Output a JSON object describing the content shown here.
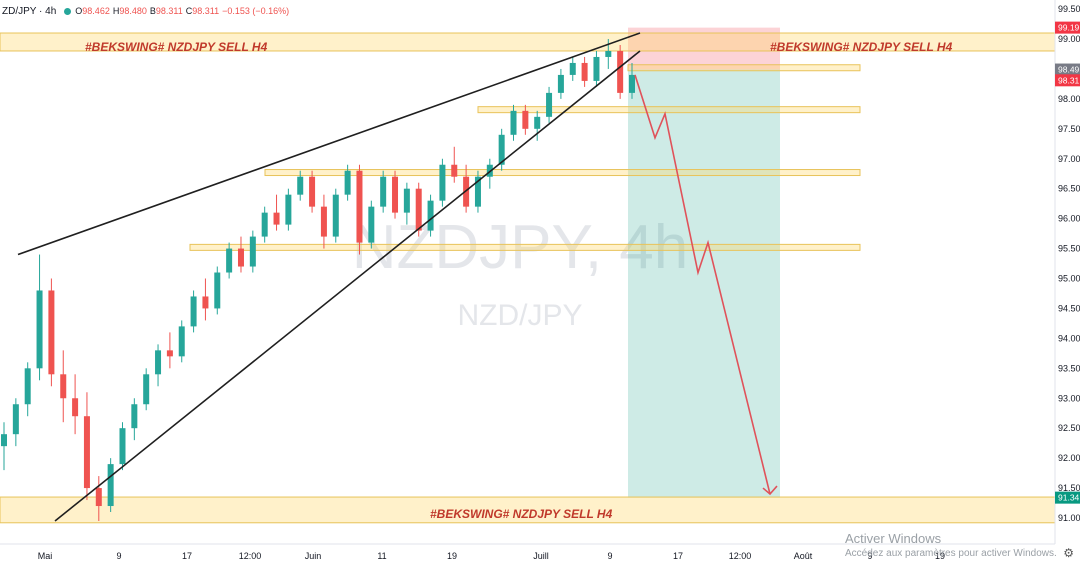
{
  "header": {
    "symbol_interval": "ZD/JPY · 4h",
    "open_key": "O",
    "open_val": "98.462",
    "high_key": "H",
    "high_val": "98.480",
    "low_key": "B",
    "low_val": "98.311",
    "close_key": "C",
    "close_val": "98.311",
    "change": "−0.153 (−0.16%)"
  },
  "watermark": {
    "line1": "NZDJPY, 4h",
    "line2": "NZD/JPY"
  },
  "os_watermark": {
    "line1": "Activer Windows",
    "line2": "Accédez aux paramètres pour activer Windows."
  },
  "chart_data": {
    "type": "candlestick",
    "symbol": "NZDJPY",
    "interval": "4h",
    "y_axis": {
      "ticks": [
        "99.50",
        "99.00",
        "98.50",
        "98.00",
        "97.50",
        "97.00",
        "96.50",
        "96.00",
        "95.50",
        "95.00",
        "94.50",
        "94.00",
        "93.50",
        "93.00",
        "92.50",
        "92.00",
        "91.50",
        "91.00"
      ],
      "ylim": [
        90.8,
        99.7
      ]
    },
    "x_axis": {
      "ticks": [
        "Mai",
        "9",
        "17",
        "12:00",
        "Juin",
        "11",
        "19",
        "Juill",
        "9",
        "17",
        "12:00",
        "Août",
        "9",
        "19"
      ]
    },
    "price_labels": [
      {
        "label": "99.19",
        "value": 99.19,
        "color": "#f23645"
      },
      {
        "label": "98.49",
        "value": 98.49,
        "color": "#787b86"
      },
      {
        "label": "98.31",
        "value": 98.31,
        "color": "#f23645"
      },
      {
        "label": "91.34",
        "value": 91.34,
        "color": "#089981"
      }
    ],
    "annotations": [
      {
        "text": "#BEKSWING# NZDJPY SELL H4",
        "position": "top-left"
      },
      {
        "text": "#BEKSWING# NZDJPY SELL H4",
        "position": "top-right"
      },
      {
        "text": "#BEKSWING# NZDJPY SELL H4",
        "position": "bottom-center"
      }
    ],
    "zones": [
      {
        "type": "resistance",
        "from": 98.8,
        "to": 99.1
      },
      {
        "type": "level",
        "from": 98.47,
        "to": 98.57
      },
      {
        "type": "level",
        "from": 97.77,
        "to": 97.87
      },
      {
        "type": "level",
        "from": 96.72,
        "to": 96.82
      },
      {
        "type": "level",
        "from": 95.47,
        "to": 95.57
      },
      {
        "type": "support",
        "from": 90.92,
        "to": 91.35
      }
    ],
    "position": {
      "type": "short",
      "entry": 98.49,
      "stop": 99.19,
      "target": 91.34
    },
    "projection_path": [
      98.4,
      97.35,
      97.75,
      95.1,
      95.6,
      91.4
    ],
    "trendlines": [
      {
        "name": "upper-wedge",
        "from": 95.4,
        "to": 99.05
      },
      {
        "name": "lower-wedge",
        "from": 90.95,
        "to": 98.85
      }
    ],
    "candles": [
      {
        "o": 92.2,
        "h": 92.6,
        "l": 91.8,
        "c": 92.4
      },
      {
        "o": 92.4,
        "h": 93.0,
        "l": 92.2,
        "c": 92.9
      },
      {
        "o": 92.9,
        "h": 93.6,
        "l": 92.7,
        "c": 93.5
      },
      {
        "o": 93.5,
        "h": 95.4,
        "l": 93.3,
        "c": 94.8
      },
      {
        "o": 94.8,
        "h": 95.0,
        "l": 93.2,
        "c": 93.4
      },
      {
        "o": 93.4,
        "h": 93.8,
        "l": 92.6,
        "c": 93.0
      },
      {
        "o": 93.0,
        "h": 93.4,
        "l": 92.4,
        "c": 92.7
      },
      {
        "o": 92.7,
        "h": 93.1,
        "l": 91.3,
        "c": 91.5
      },
      {
        "o": 91.5,
        "h": 91.7,
        "l": 90.95,
        "c": 91.2
      },
      {
        "o": 91.2,
        "h": 92.0,
        "l": 91.1,
        "c": 91.9
      },
      {
        "o": 91.9,
        "h": 92.6,
        "l": 91.8,
        "c": 92.5
      },
      {
        "o": 92.5,
        "h": 93.0,
        "l": 92.3,
        "c": 92.9
      },
      {
        "o": 92.9,
        "h": 93.5,
        "l": 92.8,
        "c": 93.4
      },
      {
        "o": 93.4,
        "h": 93.9,
        "l": 93.2,
        "c": 93.8
      },
      {
        "o": 93.8,
        "h": 94.1,
        "l": 93.5,
        "c": 93.7
      },
      {
        "o": 93.7,
        "h": 94.3,
        "l": 93.6,
        "c": 94.2
      },
      {
        "o": 94.2,
        "h": 94.8,
        "l": 94.1,
        "c": 94.7
      },
      {
        "o": 94.7,
        "h": 95.0,
        "l": 94.3,
        "c": 94.5
      },
      {
        "o": 94.5,
        "h": 95.2,
        "l": 94.4,
        "c": 95.1
      },
      {
        "o": 95.1,
        "h": 95.6,
        "l": 95.0,
        "c": 95.5
      },
      {
        "o": 95.5,
        "h": 95.7,
        "l": 95.1,
        "c": 95.2
      },
      {
        "o": 95.2,
        "h": 95.8,
        "l": 95.1,
        "c": 95.7
      },
      {
        "o": 95.7,
        "h": 96.2,
        "l": 95.6,
        "c": 96.1
      },
      {
        "o": 96.1,
        "h": 96.4,
        "l": 95.8,
        "c": 95.9
      },
      {
        "o": 95.9,
        "h": 96.5,
        "l": 95.8,
        "c": 96.4
      },
      {
        "o": 96.4,
        "h": 96.8,
        "l": 96.3,
        "c": 96.7
      },
      {
        "o": 96.7,
        "h": 96.8,
        "l": 96.1,
        "c": 96.2
      },
      {
        "o": 96.2,
        "h": 96.4,
        "l": 95.5,
        "c": 95.7
      },
      {
        "o": 95.7,
        "h": 96.5,
        "l": 95.6,
        "c": 96.4
      },
      {
        "o": 96.4,
        "h": 96.9,
        "l": 96.3,
        "c": 96.8
      },
      {
        "o": 96.8,
        "h": 96.9,
        "l": 95.4,
        "c": 95.6
      },
      {
        "o": 95.6,
        "h": 96.3,
        "l": 95.5,
        "c": 96.2
      },
      {
        "o": 96.2,
        "h": 96.8,
        "l": 96.1,
        "c": 96.7
      },
      {
        "o": 96.7,
        "h": 96.8,
        "l": 96.0,
        "c": 96.1
      },
      {
        "o": 96.1,
        "h": 96.6,
        "l": 95.9,
        "c": 96.5
      },
      {
        "o": 96.5,
        "h": 96.6,
        "l": 95.7,
        "c": 95.8
      },
      {
        "o": 95.8,
        "h": 96.4,
        "l": 95.7,
        "c": 96.3
      },
      {
        "o": 96.3,
        "h": 97.0,
        "l": 96.2,
        "c": 96.9
      },
      {
        "o": 96.9,
        "h": 97.2,
        "l": 96.6,
        "c": 96.7
      },
      {
        "o": 96.7,
        "h": 96.9,
        "l": 96.1,
        "c": 96.2
      },
      {
        "o": 96.2,
        "h": 96.8,
        "l": 96.1,
        "c": 96.7
      },
      {
        "o": 96.7,
        "h": 97.0,
        "l": 96.5,
        "c": 96.9
      },
      {
        "o": 96.9,
        "h": 97.5,
        "l": 96.8,
        "c": 97.4
      },
      {
        "o": 97.4,
        "h": 97.9,
        "l": 97.3,
        "c": 97.8
      },
      {
        "o": 97.8,
        "h": 97.9,
        "l": 97.4,
        "c": 97.5
      },
      {
        "o": 97.5,
        "h": 97.8,
        "l": 97.3,
        "c": 97.7
      },
      {
        "o": 97.7,
        "h": 98.2,
        "l": 97.6,
        "c": 98.1
      },
      {
        "o": 98.1,
        "h": 98.5,
        "l": 98.0,
        "c": 98.4
      },
      {
        "o": 98.4,
        "h": 98.7,
        "l": 98.3,
        "c": 98.6
      },
      {
        "o": 98.6,
        "h": 98.7,
        "l": 98.2,
        "c": 98.3
      },
      {
        "o": 98.3,
        "h": 98.8,
        "l": 98.2,
        "c": 98.7
      },
      {
        "o": 98.7,
        "h": 99.0,
        "l": 98.5,
        "c": 98.8
      },
      {
        "o": 98.8,
        "h": 98.9,
        "l": 98.0,
        "c": 98.1
      },
      {
        "o": 98.1,
        "h": 98.6,
        "l": 98.0,
        "c": 98.4
      }
    ]
  }
}
